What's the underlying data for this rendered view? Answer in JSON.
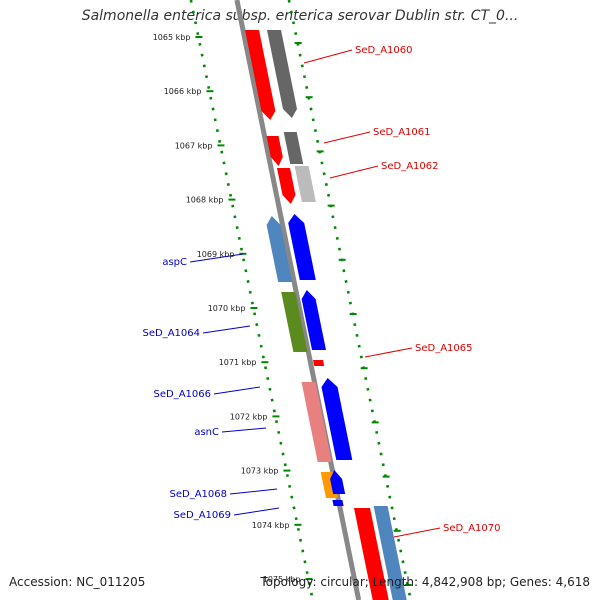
{
  "title": "Salmonella enterica subsp. enterica serovar Dublin str. CT_0...",
  "footer": {
    "accession": "Accession: NC_011205",
    "summary": "Topology: circular; Length: 4,842,908 bp; Genes: 4,618"
  },
  "ticks": [
    "1065 kbp",
    "1066 kbp",
    "1067 kbp",
    "1068 kbp",
    "1069 kbp",
    "1070 kbp",
    "1071 kbp",
    "1072 kbp",
    "1073 kbp",
    "1074 kbp",
    "1075 kbp"
  ],
  "colors": {
    "label_right": "#e00000",
    "label_left": "#0000cc",
    "dots": "#008800",
    "axis": "#888888",
    "red": "#ff0000",
    "gray": "#666666",
    "lightgray": "#bbbbbb",
    "steelblue": "#4f86be",
    "blue": "#0000ff",
    "olive": "#5b8a1f",
    "pink": "#e88080",
    "orange": "#ff9900"
  },
  "genes_right": [
    {
      "label": "SeD_A1060"
    },
    {
      "label": "SeD_A1061"
    },
    {
      "label": "SeD_A1062"
    },
    {
      "label": "SeD_A1065"
    },
    {
      "label": "SeD_A1070"
    }
  ],
  "genes_left": [
    {
      "label": "aspC"
    },
    {
      "label": "SeD_A1064"
    },
    {
      "label": "SeD_A1066"
    },
    {
      "label": "asnC"
    },
    {
      "label": "SeD_A1068"
    },
    {
      "label": "SeD_A1069"
    }
  ]
}
